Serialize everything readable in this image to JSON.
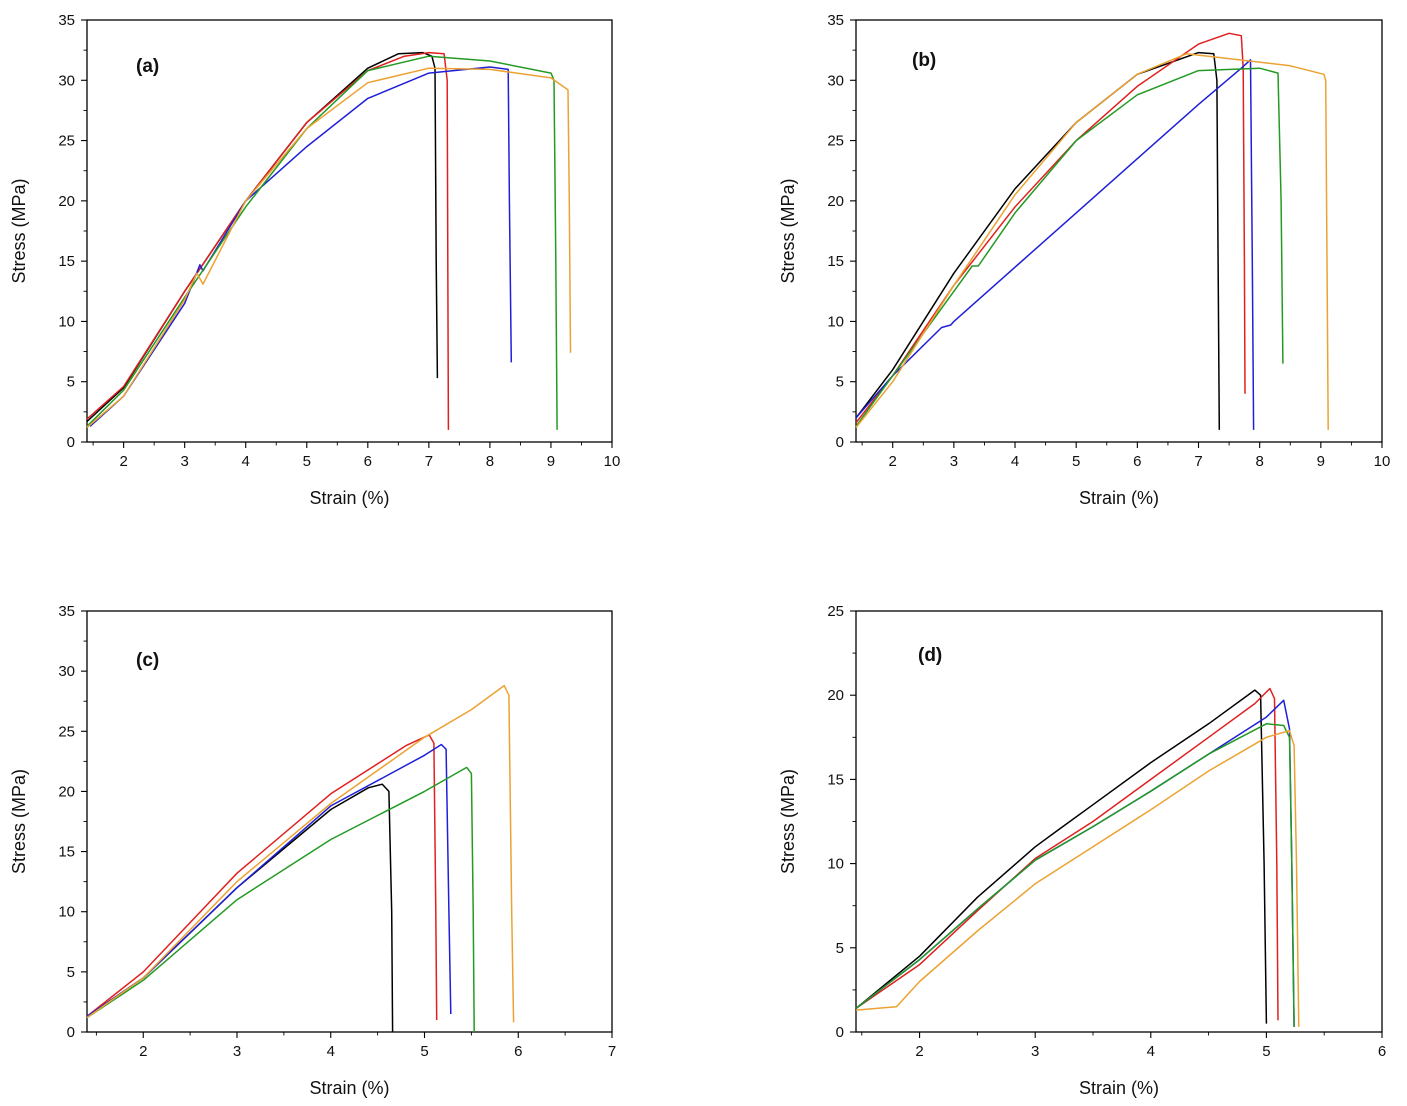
{
  "chart_data": [
    {
      "type": "line",
      "panel_label": "(a)",
      "xlabel": "Strain (%)",
      "ylabel": "Stress (MPa)",
      "xlim": [
        1.4,
        10
      ],
      "ylim": [
        0,
        35
      ],
      "xticks": [
        2,
        3,
        4,
        5,
        6,
        7,
        8,
        9,
        10
      ],
      "yticks": [
        0,
        5,
        10,
        15,
        20,
        25,
        30,
        35
      ],
      "series": [
        {
          "color": "#000000",
          "x": [
            1.4,
            2.0,
            3.0,
            4.0,
            5.0,
            6.0,
            6.5,
            6.9,
            7.05,
            7.1,
            7.12,
            7.14
          ],
          "y": [
            1.7,
            4.5,
            12.5,
            20.0,
            26.5,
            31.0,
            32.2,
            32.3,
            32.0,
            31.0,
            15.0,
            5.3
          ]
        },
        {
          "color": "#e02020",
          "x": [
            1.4,
            2.0,
            3.0,
            4.0,
            5.0,
            6.0,
            6.6,
            7.0,
            7.25,
            7.3,
            7.31,
            7.32
          ],
          "y": [
            1.9,
            4.6,
            12.5,
            20.0,
            26.5,
            30.8,
            32.0,
            32.3,
            32.2,
            30.0,
            15.0,
            1.0
          ]
        },
        {
          "color": "#1f1fd8",
          "x": [
            1.45,
            2.0,
            3.0,
            3.25,
            3.3,
            4.0,
            5.0,
            6.0,
            7.0,
            8.0,
            8.3,
            8.32,
            8.35
          ],
          "y": [
            1.3,
            3.8,
            11.5,
            14.7,
            14.2,
            20.0,
            24.5,
            28.5,
            30.6,
            31.1,
            30.9,
            20.0,
            6.6
          ]
        },
        {
          "color": "#239a23",
          "x": [
            1.4,
            2.0,
            3.0,
            4.0,
            5.0,
            6.0,
            7.0,
            8.0,
            9.0,
            9.05,
            9.08,
            9.1
          ],
          "y": [
            1.3,
            4.3,
            12.0,
            19.5,
            26.0,
            30.8,
            32.0,
            31.6,
            30.6,
            30.0,
            15.0,
            1.0
          ]
        },
        {
          "color": "#eca232",
          "x": [
            1.4,
            2.0,
            3.0,
            3.2,
            3.3,
            4.0,
            5.0,
            6.0,
            7.0,
            8.0,
            9.0,
            9.28,
            9.3,
            9.32
          ],
          "y": [
            1.2,
            3.8,
            11.8,
            14.0,
            13.1,
            20.0,
            26.0,
            29.8,
            31.0,
            30.9,
            30.2,
            29.2,
            20.0,
            7.4
          ]
        }
      ]
    },
    {
      "type": "line",
      "panel_label": "(b)",
      "xlabel": "Strain (%)",
      "ylabel": "Stress (MPa)",
      "xlim": [
        1.4,
        10
      ],
      "ylim": [
        0,
        35
      ],
      "xticks": [
        2,
        3,
        4,
        5,
        6,
        7,
        8,
        9,
        10
      ],
      "yticks": [
        0,
        5,
        10,
        15,
        20,
        25,
        30,
        35
      ],
      "series": [
        {
          "color": "#000000",
          "x": [
            1.4,
            2.0,
            3.0,
            4.0,
            5.0,
            6.0,
            7.0,
            7.25,
            7.3,
            7.32,
            7.34
          ],
          "y": [
            2.0,
            6.0,
            14.0,
            21.0,
            26.5,
            30.5,
            32.3,
            32.2,
            30.0,
            15.0,
            1.0
          ]
        },
        {
          "color": "#e02020",
          "x": [
            1.4,
            2.0,
            3.0,
            4.0,
            5.0,
            6.0,
            7.0,
            7.5,
            7.7,
            7.73,
            7.75,
            7.76
          ],
          "y": [
            1.6,
            5.5,
            13.0,
            19.5,
            25.0,
            29.5,
            33.0,
            33.9,
            33.7,
            31.0,
            15.0,
            4.0
          ]
        },
        {
          "color": "#1f1fd8",
          "x": [
            1.4,
            2.0,
            2.8,
            2.95,
            3.0,
            4.0,
            5.0,
            6.0,
            7.0,
            7.7,
            7.85,
            7.88,
            7.9
          ],
          "y": [
            2.0,
            5.5,
            9.5,
            9.7,
            10.0,
            14.5,
            19.0,
            23.5,
            28.0,
            31.0,
            31.7,
            15.0,
            1.0
          ]
        },
        {
          "color": "#239a23",
          "x": [
            1.4,
            2.0,
            3.0,
            3.3,
            3.4,
            4.0,
            5.0,
            6.0,
            7.0,
            8.0,
            8.3,
            8.35,
            8.38
          ],
          "y": [
            1.3,
            5.5,
            12.5,
            14.6,
            14.6,
            19.0,
            25.0,
            28.8,
            30.8,
            31.0,
            30.6,
            20.0,
            6.5
          ]
        },
        {
          "color": "#eca232",
          "x": [
            1.4,
            2.0,
            3.0,
            4.0,
            5.0,
            6.0,
            6.8,
            7.5,
            8.5,
            9.05,
            9.08,
            9.1,
            9.12
          ],
          "y": [
            1.2,
            5.0,
            13.0,
            20.5,
            26.5,
            30.5,
            32.2,
            31.8,
            31.2,
            30.5,
            30.0,
            15.0,
            1.0
          ]
        }
      ]
    },
    {
      "type": "line",
      "panel_label": "(c)",
      "xlabel": "Strain (%)",
      "ylabel": "Stress (MPa)",
      "xlim": [
        1.4,
        7
      ],
      "ylim": [
        0,
        35
      ],
      "xticks": [
        2,
        3,
        4,
        5,
        6,
        7
      ],
      "yticks": [
        0,
        5,
        10,
        15,
        20,
        25,
        30,
        35
      ],
      "series": [
        {
          "color": "#000000",
          "x": [
            1.4,
            2.0,
            3.0,
            4.0,
            4.4,
            4.55,
            4.62,
            4.65,
            4.66
          ],
          "y": [
            1.3,
            4.5,
            12.0,
            18.5,
            20.3,
            20.6,
            20.0,
            10.0,
            0.0
          ]
        },
        {
          "color": "#e02020",
          "x": [
            1.4,
            2.0,
            3.0,
            4.0,
            4.8,
            5.05,
            5.1,
            5.12,
            5.13
          ],
          "y": [
            1.3,
            5.0,
            13.2,
            19.8,
            23.8,
            24.7,
            24.0,
            10.0,
            1.0
          ]
        },
        {
          "color": "#1f1fd8",
          "x": [
            1.4,
            2.0,
            3.0,
            4.0,
            5.0,
            5.18,
            5.23,
            5.26,
            5.28
          ],
          "y": [
            1.3,
            4.5,
            12.0,
            18.8,
            23.0,
            23.9,
            23.5,
            10.0,
            1.5
          ]
        },
        {
          "color": "#239a23",
          "x": [
            1.4,
            2.0,
            3.0,
            4.0,
            5.0,
            5.45,
            5.5,
            5.52,
            5.53
          ],
          "y": [
            1.2,
            4.3,
            11.0,
            16.0,
            20.0,
            22.0,
            21.5,
            10.0,
            0.0
          ]
        },
        {
          "color": "#eca232",
          "x": [
            1.4,
            2.0,
            3.0,
            4.0,
            5.0,
            5.5,
            5.85,
            5.9,
            5.93,
            5.95
          ],
          "y": [
            1.2,
            4.5,
            12.5,
            19.0,
            24.5,
            26.8,
            28.8,
            28.0,
            10.0,
            0.8
          ]
        }
      ]
    },
    {
      "type": "line",
      "panel_label": "(d)",
      "xlabel": "Strain (%)",
      "ylabel": "Stress (MPa)",
      "xlim": [
        1.45,
        6
      ],
      "ylim": [
        0,
        25
      ],
      "xticks": [
        2,
        3,
        4,
        5,
        6
      ],
      "yticks": [
        0,
        5,
        10,
        15,
        20,
        25
      ],
      "series": [
        {
          "color": "#000000",
          "x": [
            1.45,
            2.0,
            2.5,
            3.0,
            3.2,
            3.5,
            4.0,
            4.5,
            4.9,
            4.95,
            4.98,
            5.0
          ],
          "y": [
            1.4,
            4.5,
            8.0,
            11.0,
            12.0,
            13.5,
            16.0,
            18.3,
            20.3,
            20.0,
            10.0,
            0.5
          ]
        },
        {
          "color": "#e02020",
          "x": [
            1.45,
            2.0,
            2.5,
            3.0,
            3.5,
            4.0,
            4.5,
            4.9,
            5.03,
            5.07,
            5.09,
            5.1
          ],
          "y": [
            1.4,
            4.0,
            7.2,
            10.3,
            12.5,
            15.0,
            17.5,
            19.5,
            20.4,
            19.8,
            10.0,
            0.7
          ]
        },
        {
          "color": "#1f1fd8",
          "x": [
            1.45,
            2.0,
            2.5,
            3.0,
            3.5,
            4.0,
            4.5,
            5.0,
            5.15,
            5.2,
            5.22,
            5.24
          ],
          "y": [
            1.4,
            4.3,
            7.3,
            10.2,
            12.2,
            14.3,
            16.5,
            18.7,
            19.7,
            18.0,
            10.0,
            0.3
          ]
        },
        {
          "color": "#239a23",
          "x": [
            1.45,
            2.0,
            2.5,
            3.0,
            3.5,
            4.0,
            4.5,
            5.0,
            5.15,
            5.2,
            5.22,
            5.24
          ],
          "y": [
            1.4,
            4.3,
            7.3,
            10.2,
            12.2,
            14.3,
            16.5,
            18.3,
            18.2,
            17.5,
            10.0,
            0.3
          ]
        },
        {
          "color": "#eca232",
          "x": [
            1.45,
            1.8,
            2.0,
            2.5,
            3.0,
            3.5,
            4.0,
            4.5,
            5.0,
            5.2,
            5.24,
            5.26,
            5.28
          ],
          "y": [
            1.3,
            1.5,
            3.0,
            6.0,
            8.8,
            11.0,
            13.2,
            15.5,
            17.5,
            17.9,
            17.0,
            10.0,
            0.3
          ]
        }
      ]
    }
  ]
}
